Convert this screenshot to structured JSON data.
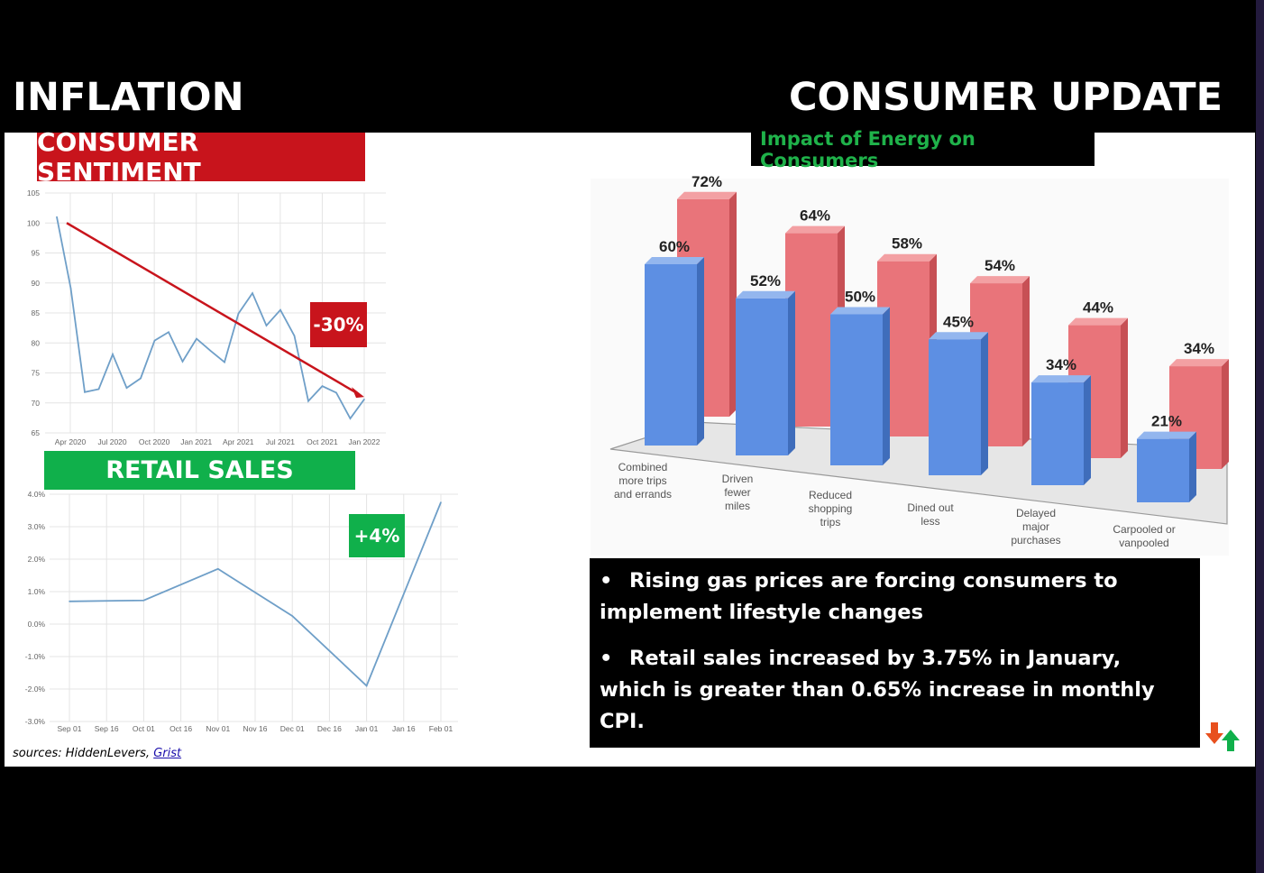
{
  "header": {
    "left_title": "INFLATION",
    "right_title": "CONSUMER UPDATE"
  },
  "labels": {
    "sentiment": "CONSUMER SENTIMENT",
    "retail": "RETAIL SALES",
    "energy": "Impact of Energy on Consumers"
  },
  "tags": {
    "sentiment_change": "-30%",
    "retail_change": "+4%"
  },
  "bullets": [
    "Rising gas prices are forcing consumers to implement lifestyle changes",
    "Retail sales increased by 3.75% in January, which is greater than 0.65% increase in monthly CPI."
  ],
  "sources": {
    "prefix": "sources: HiddenLevers, ",
    "link": "Grist"
  },
  "colors": {
    "red": "#c8141c",
    "green": "#10b04b",
    "line": "#6f9fc8",
    "trend": "#c8141c"
  },
  "chart_data": [
    {
      "type": "line",
      "title": "CONSUMER SENTIMENT",
      "x_ticks": [
        "Apr 2020",
        "Jul 2020",
        "Oct 2020",
        "Jan 2021",
        "Apr 2021",
        "Jul 2021",
        "Oct 2021",
        "Jan 2022"
      ],
      "y_ticks": [
        65,
        70,
        75,
        80,
        85,
        90,
        95,
        100,
        105
      ],
      "ylim": [
        65,
        105
      ],
      "grid": true,
      "series": [
        {
          "values": [
            101,
            89.1,
            71.8,
            72.3,
            78.1,
            72.5,
            74.1,
            80.4,
            81.8,
            76.9,
            80.7,
            78.7,
            76.8,
            84.9,
            88.3,
            82.9,
            85.5,
            81.2,
            70.3,
            72.8,
            71.7,
            67.4,
            70.6
          ]
        }
      ],
      "trend": {
        "from": 100,
        "to": 71
      },
      "annotation": "-30%"
    },
    {
      "type": "line",
      "title": "RETAIL SALES",
      "x_ticks": [
        "Sep 01",
        "Sep 16",
        "Oct 01",
        "Oct 16",
        "Nov 01",
        "Nov 16",
        "Dec 01",
        "Dec 16",
        "Jan 01",
        "Jan 16",
        "Feb 01"
      ],
      "y_ticks": [
        "-3.0%",
        "-2.0%",
        "-1.0%",
        "0.0%",
        "1.0%",
        "2.0%",
        "3.0%",
        "4.0%"
      ],
      "ylim": [
        -3,
        4
      ],
      "grid": true,
      "series": [
        {
          "points": [
            [
              0,
              0.7
            ],
            [
              2,
              0.73
            ],
            [
              4,
              1.7
            ],
            [
              6,
              0.25
            ],
            [
              8,
              -1.9
            ],
            [
              10,
              3.75
            ]
          ]
        }
      ],
      "annotation": "+4%"
    },
    {
      "type": "bar",
      "title": "Impact of Energy on Consumers",
      "categories": [
        "Combined more trips and errands",
        "Driven fewer miles",
        "Reduced shopping trips",
        "Dined out less",
        "Delayed major purchases",
        "Carpooled or vanpooled"
      ],
      "series": [
        {
          "values": [
            60,
            52,
            50,
            45,
            34,
            21
          ]
        },
        {
          "values": [
            72,
            64,
            58,
            54,
            44,
            34
          ]
        }
      ]
    }
  ]
}
